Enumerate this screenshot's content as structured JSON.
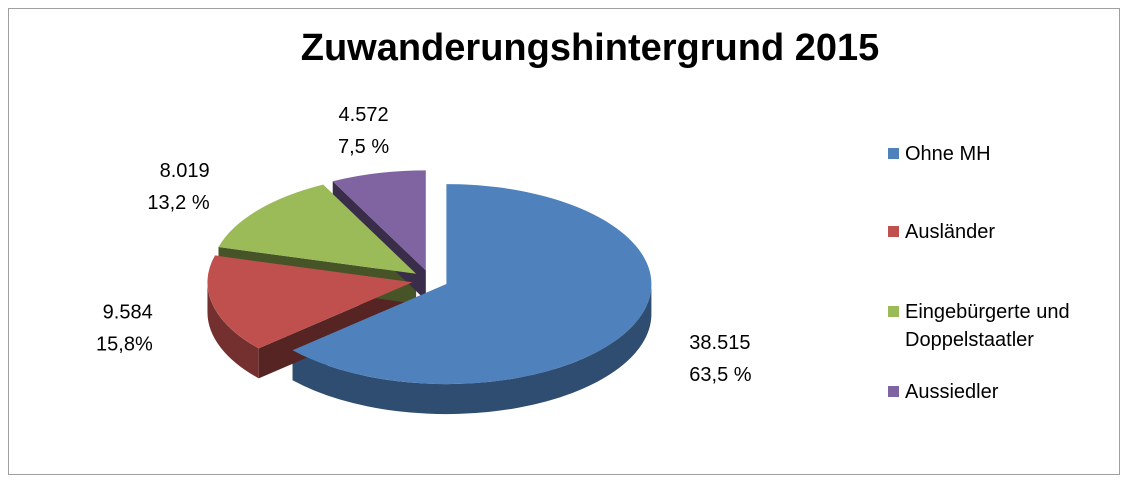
{
  "chart_data": {
    "type": "pie3d",
    "title": "Zuwanderungshintergrund 2015",
    "categories": [
      "Ohne MH",
      "Ausländer",
      "Eingebürgerte und Doppelstaatler",
      "Aussiedler"
    ],
    "values": [
      63.5,
      15.8,
      13.2,
      7.5
    ],
    "value_labels": [
      "63,5 %",
      "15,8%",
      "13,2 %",
      "7,5 %"
    ],
    "counts": [
      38515,
      9584,
      8019,
      4572
    ],
    "count_labels": [
      "38.515",
      "9.584",
      "8.019",
      "4.572"
    ],
    "colors": [
      "#4f81bd",
      "#c0504d",
      "#9bbb59",
      "#8064a2"
    ],
    "legend": "right"
  }
}
